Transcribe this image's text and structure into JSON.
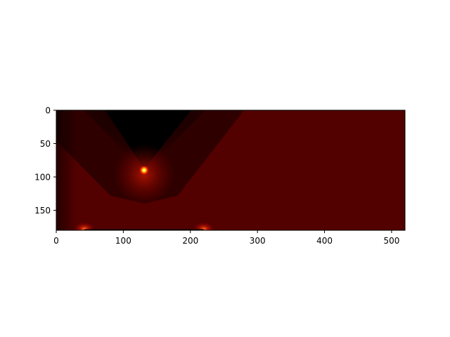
{
  "chart_data": {
    "type": "heatmap",
    "title": "",
    "xlabel": "",
    "ylabel": "",
    "colormap": "hot",
    "extent_x": [
      0,
      520
    ],
    "extent_y": [
      0,
      180
    ],
    "y_inverted": true,
    "x_ticks": [
      0,
      100,
      200,
      300,
      400,
      500
    ],
    "x_tick_labels": [
      "0",
      "100",
      "200",
      "300",
      "400",
      "500"
    ],
    "y_ticks": [
      0,
      50,
      100,
      150
    ],
    "y_tick_labels": [
      "0",
      "50",
      "100",
      "150"
    ],
    "grid": false,
    "legend": "none",
    "source": {
      "x": 131,
      "y": 90
    },
    "wave_front_apex": {
      "x": 131,
      "y": 88
    },
    "wave_front_width": 78,
    "wave_front_extent_x": [
      0,
      280
    ],
    "bottom_hotspots": [
      {
        "x": 42,
        "y": 178
      },
      {
        "x": 220,
        "y": 178
      }
    ],
    "colors": {
      "background_field": "#520000",
      "shadow": "#000000",
      "hot": "#ffffa0"
    }
  }
}
